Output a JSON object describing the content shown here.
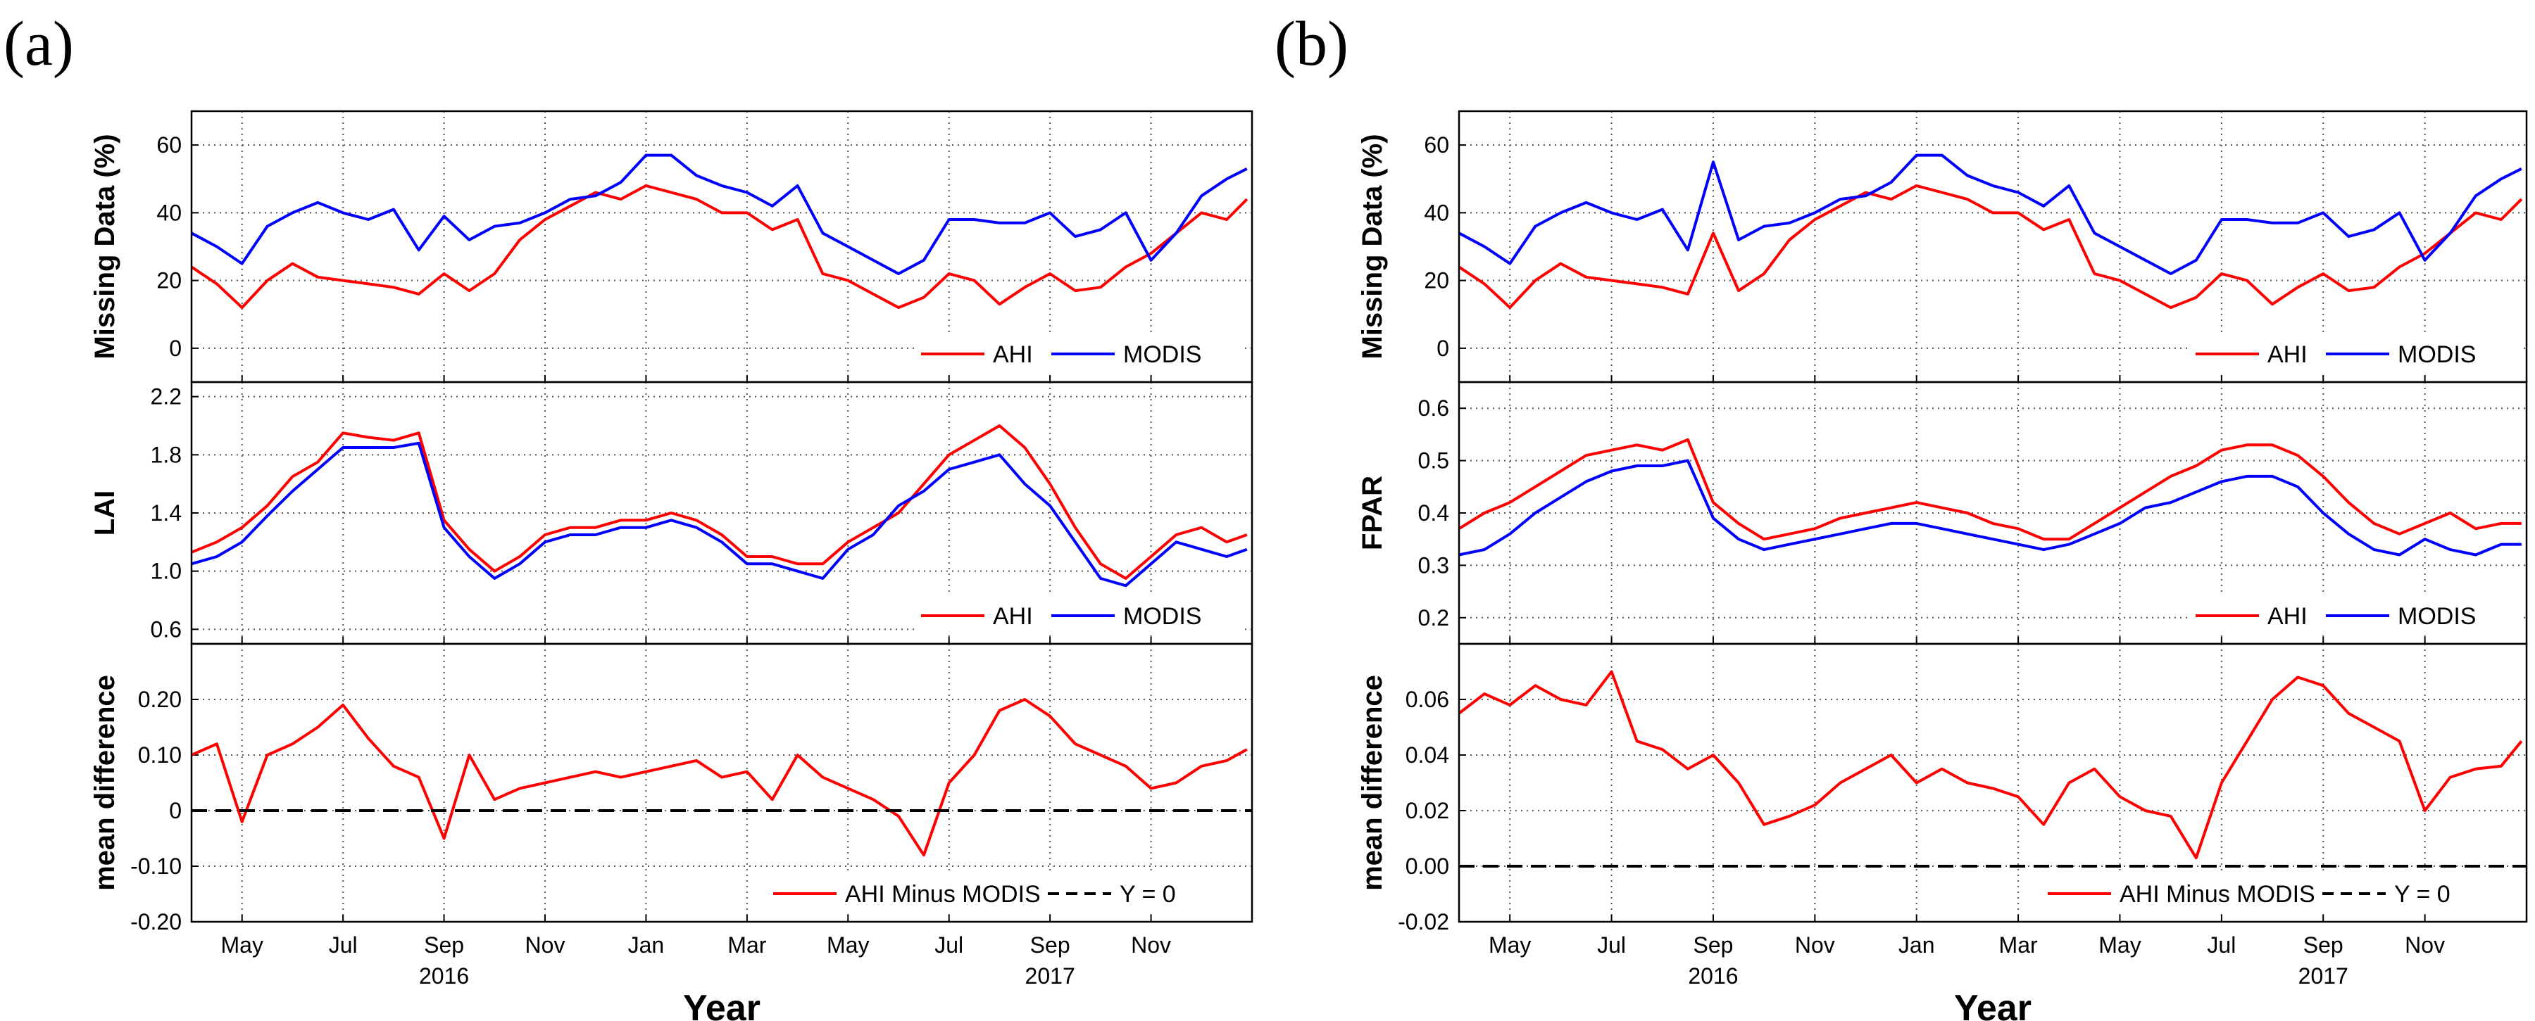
{
  "colors": {
    "ahi": "#ff0000",
    "modis": "#0000ff",
    "zero_line": "#000000"
  },
  "panels": [
    {
      "tag": "(a)",
      "x_label": "Year",
      "month_ticks": [
        "May",
        "Jul",
        "Sep",
        "Nov",
        "Jan",
        "Mar",
        "May",
        "Jul",
        "Sep",
        "Nov"
      ],
      "year_labels": [
        "2016",
        "2017"
      ],
      "subplots": [
        {
          "ylabel": "Missing Data (%)",
          "ylim": [
            -10,
            70
          ],
          "yticks": [
            "0",
            "20",
            "40",
            "60"
          ],
          "legend": [
            "AHI",
            "MODIS"
          ]
        },
        {
          "ylabel": "LAI",
          "ylim": [
            0.5,
            2.3
          ],
          "yticks": [
            "0.6",
            "1.0",
            "1.4",
            "1.8",
            "2.2"
          ],
          "legend": [
            "AHI",
            "MODIS"
          ]
        },
        {
          "ylabel": "mean difference",
          "ylim": [
            -0.2,
            0.3
          ],
          "yticks": [
            "-0.20",
            "-0.10",
            "0",
            "0.10",
            "0.20"
          ],
          "legend": [
            "AHI Minus MODIS",
            "Y = 0"
          ]
        }
      ]
    },
    {
      "tag": "(b)",
      "x_label": "Year",
      "month_ticks": [
        "May",
        "Jul",
        "Sep",
        "Nov",
        "Jan",
        "Mar",
        "May",
        "Jul",
        "Sep",
        "Nov"
      ],
      "year_labels": [
        "2016",
        "2017"
      ],
      "subplots": [
        {
          "ylabel": "Missing Data (%)",
          "ylim": [
            -10,
            70
          ],
          "yticks": [
            "0",
            "20",
            "40",
            "60"
          ],
          "legend": [
            "AHI",
            "MODIS"
          ]
        },
        {
          "ylabel": "FPAR",
          "ylim": [
            0.15,
            0.65
          ],
          "yticks": [
            "0.2",
            "0.3",
            "0.4",
            "0.5",
            "0.6"
          ],
          "legend": [
            "AHI",
            "MODIS"
          ]
        },
        {
          "ylabel": "mean difference",
          "ylim": [
            -0.02,
            0.08
          ],
          "yticks": [
            "-0.02",
            "0.00",
            "0.02",
            "0.04",
            "0.06"
          ],
          "legend": [
            "AHI Minus MODIS",
            "Y = 0"
          ]
        }
      ]
    }
  ],
  "chart_data": [
    {
      "panel": "(a)",
      "type": "line",
      "ylabel": "Missing Data (%)",
      "ylim": [
        -10,
        70
      ],
      "grid": true,
      "legend_placement": "bottom-right",
      "x_unit": "months since Apr 2016",
      "xlim": [
        0,
        21
      ],
      "x": [
        0,
        0.5,
        1,
        1.5,
        2,
        2.5,
        3,
        3.5,
        4,
        4.5,
        5,
        5.5,
        6,
        6.5,
        7,
        7.5,
        8,
        8.5,
        9,
        9.5,
        10,
        10.5,
        11,
        11.5,
        12,
        12.5,
        13,
        13.5,
        14,
        14.5,
        15,
        15.5,
        16,
        16.5,
        17,
        17.5,
        18,
        18.5,
        19,
        19.5,
        20,
        20.5,
        20.9
      ],
      "series": [
        {
          "name": "AHI",
          "color": "#ff0000",
          "values": [
            24,
            19,
            12,
            20,
            25,
            21,
            20,
            19,
            18,
            16,
            22,
            17,
            22,
            32,
            38,
            42,
            46,
            44,
            48,
            46,
            44,
            40,
            40,
            35,
            38,
            22,
            20,
            16,
            12,
            15,
            22,
            20,
            13,
            18,
            22,
            17,
            18,
            24,
            28,
            34,
            40,
            38,
            44
          ]
        },
        {
          "name": "MODIS",
          "color": "#0000ff",
          "values": [
            34,
            30,
            25,
            36,
            40,
            43,
            40,
            38,
            41,
            29,
            39,
            32,
            36,
            37,
            40,
            44,
            45,
            49,
            57,
            57,
            51,
            48,
            46,
            42,
            48,
            34,
            30,
            26,
            22,
            26,
            38,
            38,
            37,
            37,
            40,
            33,
            35,
            40,
            26,
            34,
            45,
            50,
            53
          ]
        }
      ]
    },
    {
      "panel": "(a)",
      "type": "line",
      "ylabel": "LAI",
      "ylim": [
        0.5,
        2.3
      ],
      "grid": true,
      "legend_placement": "bottom-right",
      "x_unit": "months since Apr 2016",
      "xlim": [
        0,
        21
      ],
      "x": [
        0,
        0.5,
        1,
        1.5,
        2,
        2.5,
        3,
        3.5,
        4,
        4.5,
        5,
        5.5,
        6,
        6.5,
        7,
        7.5,
        8,
        8.5,
        9,
        9.5,
        10,
        10.5,
        11,
        11.5,
        12,
        12.5,
        13,
        13.5,
        14,
        14.5,
        15,
        15.5,
        16,
        16.5,
        17,
        17.5,
        18,
        18.5,
        19,
        19.5,
        20,
        20.5,
        20.9
      ],
      "series": [
        {
          "name": "AHI",
          "color": "#ff0000",
          "values": [
            1.13,
            1.2,
            1.3,
            1.45,
            1.65,
            1.75,
            1.95,
            1.92,
            1.9,
            1.95,
            1.35,
            1.15,
            1.0,
            1.1,
            1.25,
            1.3,
            1.3,
            1.35,
            1.35,
            1.4,
            1.35,
            1.25,
            1.1,
            1.1,
            1.05,
            1.05,
            1.2,
            1.3,
            1.4,
            1.6,
            1.8,
            1.9,
            2.0,
            1.85,
            1.6,
            1.3,
            1.05,
            0.95,
            1.1,
            1.25,
            1.3,
            1.2,
            1.25
          ]
        },
        {
          "name": "MODIS",
          "color": "#0000ff",
          "values": [
            1.05,
            1.1,
            1.2,
            1.38,
            1.55,
            1.7,
            1.85,
            1.85,
            1.85,
            1.88,
            1.3,
            1.1,
            0.95,
            1.05,
            1.2,
            1.25,
            1.25,
            1.3,
            1.3,
            1.35,
            1.3,
            1.2,
            1.05,
            1.05,
            1.0,
            0.95,
            1.15,
            1.25,
            1.45,
            1.55,
            1.7,
            1.75,
            1.8,
            1.6,
            1.45,
            1.2,
            0.95,
            0.9,
            1.05,
            1.2,
            1.15,
            1.1,
            1.15
          ]
        }
      ]
    },
    {
      "panel": "(a)",
      "type": "line",
      "ylabel": "mean difference",
      "ylim": [
        -0.2,
        0.3
      ],
      "grid": true,
      "legend_placement": "bottom-right",
      "x_unit": "months since Apr 2016",
      "xlim": [
        0,
        21
      ],
      "x": [
        0,
        0.5,
        1,
        1.5,
        2,
        2.5,
        3,
        3.5,
        4,
        4.5,
        5,
        5.5,
        6,
        6.5,
        7,
        7.5,
        8,
        8.5,
        9,
        9.5,
        10,
        10.5,
        11,
        11.5,
        12,
        12.5,
        13,
        13.5,
        14,
        14.5,
        15,
        15.5,
        16,
        16.5,
        17,
        17.5,
        18,
        18.5,
        19,
        19.5,
        20,
        20.5,
        20.9
      ],
      "series": [
        {
          "name": "AHI Minus MODIS",
          "color": "#ff0000",
          "values": [
            0.1,
            0.12,
            -0.02,
            0.1,
            0.12,
            0.15,
            0.19,
            0.13,
            0.08,
            0.06,
            -0.05,
            0.1,
            0.02,
            0.04,
            0.05,
            0.06,
            0.07,
            0.06,
            0.07,
            0.08,
            0.09,
            0.06,
            0.07,
            0.02,
            0.1,
            0.06,
            0.04,
            0.02,
            -0.01,
            -0.08,
            0.05,
            0.1,
            0.18,
            0.2,
            0.17,
            0.12,
            0.1,
            0.08,
            0.04,
            0.05,
            0.08,
            0.09,
            0.11
          ]
        },
        {
          "name": "Y = 0",
          "color": "#000000",
          "values": [
            0,
            0,
            0,
            0,
            0,
            0,
            0,
            0,
            0,
            0,
            0,
            0,
            0,
            0,
            0,
            0,
            0,
            0,
            0,
            0,
            0,
            0,
            0,
            0,
            0,
            0,
            0,
            0,
            0,
            0,
            0,
            0,
            0,
            0,
            0,
            0,
            0,
            0,
            0,
            0,
            0,
            0,
            0
          ]
        }
      ]
    },
    {
      "panel": "(b)",
      "type": "line",
      "ylabel": "Missing Data (%)",
      "ylim": [
        -10,
        70
      ],
      "grid": true,
      "legend_placement": "bottom-right",
      "x_unit": "months since Apr 2016",
      "xlim": [
        0,
        21
      ],
      "x": [
        0,
        0.5,
        1,
        1.5,
        2,
        2.5,
        3,
        3.5,
        4,
        4.5,
        5,
        5.5,
        6,
        6.5,
        7,
        7.5,
        8,
        8.5,
        9,
        9.5,
        10,
        10.5,
        11,
        11.5,
        12,
        12.5,
        13,
        13.5,
        14,
        14.5,
        15,
        15.5,
        16,
        16.5,
        17,
        17.5,
        18,
        18.5,
        19,
        19.5,
        20,
        20.5,
        20.9
      ],
      "series": [
        {
          "name": "AHI",
          "color": "#ff0000",
          "values": [
            24,
            19,
            12,
            20,
            25,
            21,
            20,
            19,
            18,
            16,
            34,
            17,
            22,
            32,
            38,
            42,
            46,
            44,
            48,
            46,
            44,
            40,
            40,
            35,
            38,
            22,
            20,
            16,
            12,
            15,
            22,
            20,
            13,
            18,
            22,
            17,
            18,
            24,
            28,
            34,
            40,
            38,
            44
          ]
        },
        {
          "name": "MODIS",
          "color": "#0000ff",
          "values": [
            34,
            30,
            25,
            36,
            40,
            43,
            40,
            38,
            41,
            29,
            55,
            32,
            36,
            37,
            40,
            44,
            45,
            49,
            57,
            57,
            51,
            48,
            46,
            42,
            48,
            34,
            30,
            26,
            22,
            26,
            38,
            38,
            37,
            37,
            40,
            33,
            35,
            40,
            26,
            34,
            45,
            50,
            53
          ]
        }
      ]
    },
    {
      "panel": "(b)",
      "type": "line",
      "ylabel": "FPAR",
      "ylim": [
        0.15,
        0.65
      ],
      "grid": true,
      "legend_placement": "bottom-right",
      "x_unit": "months since Apr 2016",
      "xlim": [
        0,
        21
      ],
      "x": [
        0,
        0.5,
        1,
        1.5,
        2,
        2.5,
        3,
        3.5,
        4,
        4.5,
        5,
        5.5,
        6,
        6.5,
        7,
        7.5,
        8,
        8.5,
        9,
        9.5,
        10,
        10.5,
        11,
        11.5,
        12,
        12.5,
        13,
        13.5,
        14,
        14.5,
        15,
        15.5,
        16,
        16.5,
        17,
        17.5,
        18,
        18.5,
        19,
        19.5,
        20,
        20.5,
        20.9
      ],
      "series": [
        {
          "name": "AHI",
          "color": "#ff0000",
          "values": [
            0.37,
            0.4,
            0.42,
            0.45,
            0.48,
            0.51,
            0.52,
            0.53,
            0.52,
            0.54,
            0.42,
            0.38,
            0.35,
            0.36,
            0.37,
            0.39,
            0.4,
            0.41,
            0.42,
            0.41,
            0.4,
            0.38,
            0.37,
            0.35,
            0.35,
            0.38,
            0.41,
            0.44,
            0.47,
            0.49,
            0.52,
            0.53,
            0.53,
            0.51,
            0.47,
            0.42,
            0.38,
            0.36,
            0.38,
            0.4,
            0.37,
            0.38,
            0.38
          ]
        },
        {
          "name": "MODIS",
          "color": "#0000ff",
          "values": [
            0.32,
            0.33,
            0.36,
            0.4,
            0.43,
            0.46,
            0.48,
            0.49,
            0.49,
            0.5,
            0.39,
            0.35,
            0.33,
            0.34,
            0.35,
            0.36,
            0.37,
            0.38,
            0.38,
            0.37,
            0.36,
            0.35,
            0.34,
            0.33,
            0.34,
            0.36,
            0.38,
            0.41,
            0.42,
            0.44,
            0.46,
            0.47,
            0.47,
            0.45,
            0.4,
            0.36,
            0.33,
            0.32,
            0.35,
            0.33,
            0.32,
            0.34,
            0.34
          ]
        }
      ]
    },
    {
      "panel": "(b)",
      "type": "line",
      "ylabel": "mean difference",
      "ylim": [
        -0.02,
        0.08
      ],
      "grid": true,
      "legend_placement": "bottom-right",
      "x_unit": "months since Apr 2016",
      "xlim": [
        0,
        21
      ],
      "x": [
        0,
        0.5,
        1,
        1.5,
        2,
        2.5,
        3,
        3.5,
        4,
        4.5,
        5,
        5.5,
        6,
        6.5,
        7,
        7.5,
        8,
        8.5,
        9,
        9.5,
        10,
        10.5,
        11,
        11.5,
        12,
        12.5,
        13,
        13.5,
        14,
        14.5,
        15,
        15.5,
        16,
        16.5,
        17,
        17.5,
        18,
        18.5,
        19,
        19.5,
        20,
        20.5,
        20.9
      ],
      "series": [
        {
          "name": "AHI Minus MODIS",
          "color": "#ff0000",
          "values": [
            0.055,
            0.062,
            0.058,
            0.065,
            0.06,
            0.058,
            0.07,
            0.045,
            0.042,
            0.035,
            0.04,
            0.03,
            0.015,
            0.018,
            0.022,
            0.03,
            0.035,
            0.04,
            0.03,
            0.035,
            0.03,
            0.028,
            0.025,
            0.015,
            0.03,
            0.035,
            0.025,
            0.02,
            0.018,
            0.003,
            0.03,
            0.045,
            0.06,
            0.068,
            0.065,
            0.055,
            0.05,
            0.045,
            0.02,
            0.032,
            0.035,
            0.036,
            0.045
          ]
        },
        {
          "name": "Y = 0",
          "color": "#000000",
          "values": [
            0,
            0,
            0,
            0,
            0,
            0,
            0,
            0,
            0,
            0,
            0,
            0,
            0,
            0,
            0,
            0,
            0,
            0,
            0,
            0,
            0,
            0,
            0,
            0,
            0,
            0,
            0,
            0,
            0,
            0,
            0,
            0,
            0,
            0,
            0,
            0,
            0,
            0,
            0,
            0,
            0,
            0,
            0
          ]
        }
      ]
    }
  ]
}
